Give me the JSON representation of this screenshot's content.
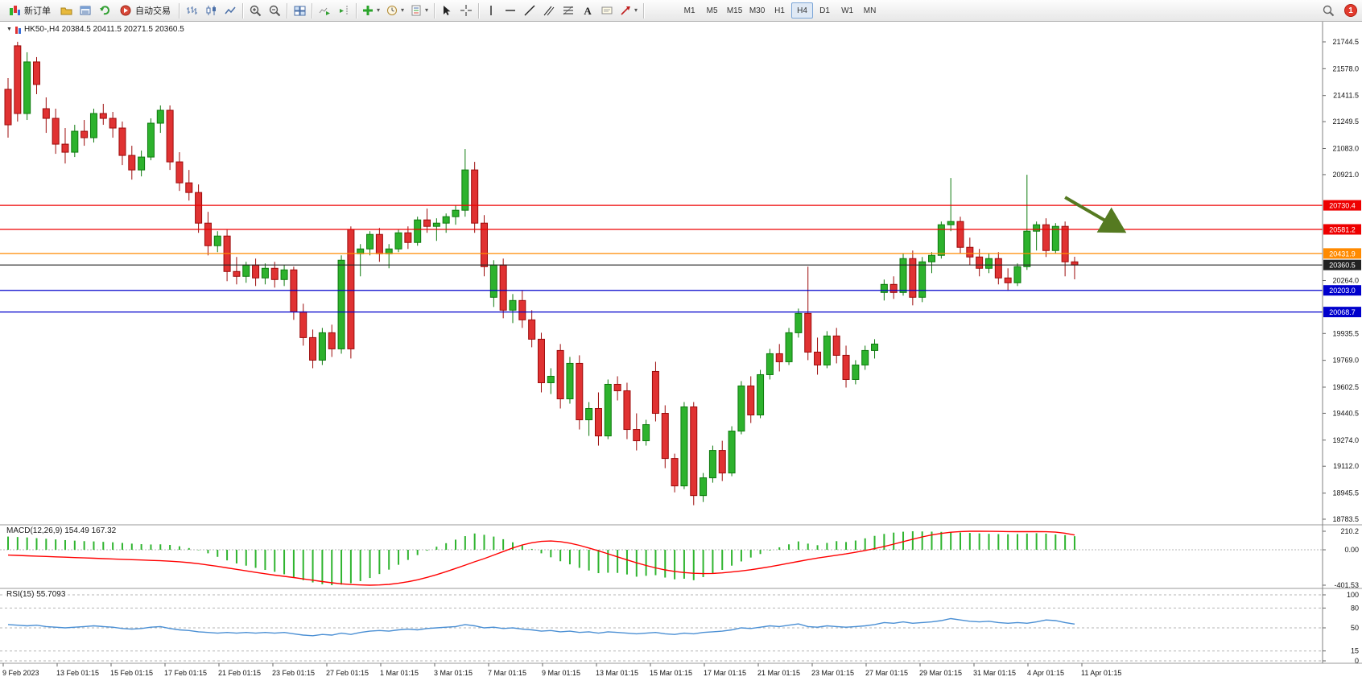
{
  "toolbar": {
    "new_order": "新订单",
    "autotrading": "自动交易",
    "chevron": "▾",
    "text_tool": "A",
    "notification_count": "1",
    "timeframes": [
      "M1",
      "M5",
      "M15",
      "M30",
      "H1",
      "H4",
      "D1",
      "W1",
      "MN"
    ],
    "active_timeframe": "H4"
  },
  "chart": {
    "collapse_glyph": "▼",
    "title": "HK50-,H4 20384.5 20411.5 20271.5 20360.5",
    "symbol": "HK50-",
    "period": "H4",
    "open": 20384.5,
    "high": 20411.5,
    "low": 20271.5,
    "close": 20360.5
  },
  "indicators": {
    "macd_label": "MACD(12,26,9) 154.49 167.32",
    "rsi_label": "RSI(15) 55.7093"
  },
  "colors": {
    "up": "#2db22d",
    "up_border": "#0e7a0e",
    "down": "#e03232",
    "down_border": "#9c0b0b",
    "macd_hist": "#2fb42f",
    "macd_signal": "#ff0000",
    "rsi_line": "#4a8fd4",
    "line_red": "#ee0000",
    "line_orange": "#ff8a00",
    "line_blue": "#0000cc",
    "bid_line": "#333333",
    "arrow": "#557a21"
  },
  "chart_data": [
    {
      "type": "candlestick",
      "title": "HK50-,H4",
      "ylim": [
        18783.5,
        21744.5
      ],
      "y_ticks": [
        "21744.5",
        "21578.0",
        "21411.5",
        "21249.5",
        "21083.0",
        "20921.0",
        "20264.0",
        "19935.5",
        "19769.0",
        "19602.5",
        "19440.5",
        "19274.0",
        "19112.0",
        "18945.5",
        "18783.5"
      ],
      "x_labels": [
        "9 Feb 2023",
        "13 Feb 01:15",
        "15 Feb 01:15",
        "17 Feb 01:15",
        "21 Feb 01:15",
        "23 Feb 01:15",
        "27 Feb 01:15",
        "1 Mar 01:15",
        "3 Mar 01:15",
        "7 Mar 01:15",
        "9 Mar 01:15",
        "13 Mar 01:15",
        "15 Mar 01:15",
        "17 Mar 01:15",
        "21 Mar 01:15",
        "23 Mar 01:15",
        "27 Mar 01:15",
        "29 Mar 01:15",
        "31 Mar 01:15",
        "4 Apr 01:15",
        "11 Apr 01:15"
      ],
      "price_lines": [
        {
          "price": 20730.4,
          "color": "#ee0000"
        },
        {
          "price": 20581.2,
          "color": "#ee0000"
        },
        {
          "price": 20431.9,
          "color": "#ff8a00"
        },
        {
          "price": 20360.5,
          "color": "#222222"
        },
        {
          "price": 20203.0,
          "color": "#0000cc"
        },
        {
          "price": 20068.7,
          "color": "#0000cc"
        }
      ],
      "arrow": {
        "from_index": 111,
        "from_price": 20780,
        "to_index": 117,
        "to_price": 20575,
        "color": "#557a21"
      },
      "candles": [
        [
          21450,
          21520,
          21150,
          21230
        ],
        [
          21720,
          21745,
          21250,
          21300
        ],
        [
          21300,
          21680,
          21260,
          21620
        ],
        [
          21620,
          21650,
          21420,
          21480
        ],
        [
          21330,
          21400,
          21180,
          21270
        ],
        [
          21270,
          21330,
          21050,
          21110
        ],
        [
          21110,
          21210,
          20990,
          21060
        ],
        [
          21060,
          21230,
          21030,
          21190
        ],
        [
          21190,
          21260,
          21100,
          21150
        ],
        [
          21150,
          21330,
          21120,
          21300
        ],
        [
          21300,
          21360,
          21230,
          21270
        ],
        [
          21270,
          21310,
          21150,
          21210
        ],
        [
          21210,
          21250,
          20980,
          21040
        ],
        [
          21040,
          21100,
          20890,
          20950
        ],
        [
          20950,
          21070,
          20910,
          21030
        ],
        [
          21030,
          21270,
          21010,
          21240
        ],
        [
          21240,
          21350,
          21180,
          21320
        ],
        [
          21320,
          21350,
          20950,
          21000
        ],
        [
          21000,
          21060,
          20820,
          20870
        ],
        [
          20870,
          20950,
          20760,
          20810
        ],
        [
          20810,
          20860,
          20560,
          20620
        ],
        [
          20620,
          20690,
          20420,
          20480
        ],
        [
          20480,
          20570,
          20440,
          20540
        ],
        [
          20540,
          20580,
          20260,
          20320
        ],
        [
          20320,
          20410,
          20240,
          20290
        ],
        [
          20290,
          20380,
          20250,
          20360
        ],
        [
          20360,
          20400,
          20230,
          20280
        ],
        [
          20280,
          20370,
          20240,
          20340
        ],
        [
          20340,
          20380,
          20220,
          20270
        ],
        [
          20270,
          20360,
          20230,
          20330
        ],
        [
          20330,
          20350,
          20020,
          20070
        ],
        [
          20070,
          20120,
          19860,
          19910
        ],
        [
          19910,
          19960,
          19720,
          19770
        ],
        [
          19770,
          19970,
          19740,
          19940
        ],
        [
          19940,
          19990,
          19790,
          19840
        ],
        [
          19840,
          20420,
          19810,
          20390
        ],
        [
          20580,
          20600,
          19780,
          19840
        ],
        [
          20430,
          20490,
          20290,
          20460
        ],
        [
          20460,
          20570,
          20420,
          20550
        ],
        [
          20550,
          20590,
          20380,
          20430
        ],
        [
          20430,
          20490,
          20340,
          20460
        ],
        [
          20460,
          20580,
          20440,
          20560
        ],
        [
          20560,
          20600,
          20460,
          20500
        ],
        [
          20500,
          20660,
          20480,
          20640
        ],
        [
          20640,
          20710,
          20560,
          20600
        ],
        [
          20600,
          20650,
          20510,
          20620
        ],
        [
          20620,
          20680,
          20560,
          20660
        ],
        [
          20660,
          20730,
          20610,
          20700
        ],
        [
          20700,
          21080,
          20660,
          20950
        ],
        [
          20950,
          21000,
          20560,
          20620
        ],
        [
          20620,
          20670,
          20290,
          20350
        ],
        [
          20160,
          20390,
          20100,
          20360
        ],
        [
          20360,
          20400,
          20030,
          20080
        ],
        [
          20080,
          20180,
          20000,
          20140
        ],
        [
          20140,
          20200,
          19970,
          20020
        ],
        [
          20020,
          20080,
          19850,
          19900
        ],
        [
          19900,
          19940,
          19570,
          19630
        ],
        [
          19630,
          19720,
          19560,
          19670
        ],
        [
          19830,
          19870,
          19470,
          19530
        ],
        [
          19530,
          19790,
          19500,
          19750
        ],
        [
          19750,
          19800,
          19340,
          19400
        ],
        [
          19400,
          19510,
          19300,
          19470
        ],
        [
          19470,
          19570,
          19240,
          19300
        ],
        [
          19300,
          19650,
          19280,
          19620
        ],
        [
          19620,
          19670,
          19520,
          19580
        ],
        [
          19580,
          19630,
          19280,
          19340
        ],
        [
          19340,
          19440,
          19210,
          19270
        ],
        [
          19270,
          19400,
          19240,
          19370
        ],
        [
          19700,
          19760,
          19390,
          19440
        ],
        [
          19440,
          19490,
          19100,
          19160
        ],
        [
          19160,
          19190,
          18950,
          18990
        ],
        [
          18990,
          19510,
          18970,
          19480
        ],
        [
          19480,
          19510,
          18870,
          18930
        ],
        [
          18930,
          19070,
          18890,
          19040
        ],
        [
          19040,
          19240,
          19010,
          19210
        ],
        [
          19210,
          19270,
          19020,
          19070
        ],
        [
          19070,
          19360,
          19050,
          19330
        ],
        [
          19330,
          19640,
          19310,
          19610
        ],
        [
          19610,
          19670,
          19380,
          19430
        ],
        [
          19430,
          19710,
          19410,
          19680
        ],
        [
          19680,
          19840,
          19650,
          19810
        ],
        [
          19810,
          19870,
          19700,
          19760
        ],
        [
          19760,
          19970,
          19740,
          19940
        ],
        [
          19940,
          20090,
          19910,
          20060
        ],
        [
          20060,
          20350,
          19770,
          19820
        ],
        [
          19820,
          19910,
          19680,
          19740
        ],
        [
          19740,
          19950,
          19720,
          19920
        ],
        [
          19920,
          19970,
          19750,
          19800
        ],
        [
          19800,
          19860,
          19600,
          19650
        ],
        [
          19650,
          19770,
          19620,
          19740
        ],
        [
          19740,
          19860,
          19710,
          19830
        ],
        [
          19830,
          19900,
          19780,
          19870
        ],
        [
          20190,
          20270,
          20140,
          20240
        ],
        [
          20240,
          20290,
          20150,
          20190
        ],
        [
          20190,
          20430,
          20170,
          20400
        ],
        [
          20400,
          20450,
          20110,
          20160
        ],
        [
          20160,
          20410,
          20130,
          20380
        ],
        [
          20380,
          20440,
          20310,
          20420
        ],
        [
          20420,
          20630,
          20400,
          20610
        ],
        [
          20610,
          20900,
          20570,
          20630
        ],
        [
          20630,
          20660,
          20430,
          20470
        ],
        [
          20470,
          20530,
          20360,
          20410
        ],
        [
          20410,
          20460,
          20290,
          20340
        ],
        [
          20340,
          20430,
          20310,
          20400
        ],
        [
          20400,
          20440,
          20240,
          20280
        ],
        [
          20280,
          20340,
          20200,
          20250
        ],
        [
          20250,
          20370,
          20230,
          20350
        ],
        [
          20350,
          20920,
          20330,
          20570
        ],
        [
          20570,
          20630,
          20450,
          20610
        ],
        [
          20610,
          20650,
          20410,
          20450
        ],
        [
          20450,
          20620,
          20430,
          20600
        ],
        [
          20600,
          20630,
          20290,
          20380
        ],
        [
          20380,
          20411.5,
          20271.5,
          20360.5
        ]
      ]
    },
    {
      "type": "bar",
      "name": "MACD(12,26,9)",
      "values_label": "154.49 167.32",
      "ylim": [
        -401.53,
        210.2
      ],
      "y_ticks": [
        "210.2",
        "0.00",
        "-401.53"
      ],
      "histogram": [
        150,
        145,
        140,
        132,
        125,
        118,
        110,
        104,
        98,
        95,
        90,
        85,
        78,
        70,
        64,
        60,
        62,
        55,
        40,
        20,
        -5,
        -40,
        -80,
        -120,
        -155,
        -180,
        -205,
        -228,
        -250,
        -278,
        -310,
        -345,
        -370,
        -390,
        -401.53,
        -395,
        -380,
        -355,
        -320,
        -275,
        -225,
        -170,
        -115,
        -60,
        -10,
        35,
        75,
        115,
        155,
        185,
        170,
        150,
        120,
        85,
        50,
        10,
        -40,
        -85,
        -130,
        -165,
        -205,
        -235,
        -265,
        -260,
        -262,
        -280,
        -305,
        -295,
        -288,
        -315,
        -335,
        -328,
        -345,
        -310,
        -270,
        -228,
        -180,
        -132,
        -88,
        -48,
        -8,
        28,
        62,
        95,
        70,
        52,
        78,
        98,
        88,
        105,
        130,
        158,
        180,
        195,
        205,
        210,
        208,
        206,
        203,
        200,
        196,
        191,
        186,
        181,
        178,
        176,
        179,
        184,
        188,
        183,
        174,
        167,
        154.49
      ],
      "signal": [
        -60,
        -64,
        -68,
        -72,
        -76,
        -80,
        -84,
        -88,
        -92,
        -96,
        -100,
        -104,
        -108,
        -112,
        -116,
        -120,
        -124,
        -129,
        -136,
        -146,
        -158,
        -172,
        -188,
        -205,
        -222,
        -239,
        -256,
        -272,
        -287,
        -301,
        -315,
        -330,
        -345,
        -360,
        -374,
        -386,
        -394,
        -399,
        -401.53,
        -399,
        -392,
        -380,
        -362,
        -340,
        -313,
        -282,
        -248,
        -212,
        -174,
        -136,
        -100,
        -60,
        -20,
        20,
        55,
        80,
        95,
        100,
        92,
        75,
        50,
        20,
        -12,
        -45,
        -80,
        -115,
        -148,
        -178,
        -205,
        -228,
        -245,
        -258,
        -266,
        -270,
        -268,
        -262,
        -252,
        -240,
        -226,
        -210,
        -192,
        -172,
        -152,
        -132,
        -112,
        -94,
        -78,
        -62,
        -46,
        -28,
        -8,
        14,
        38,
        64,
        92,
        120,
        146,
        168,
        186,
        199,
        207,
        210,
        210,
        209,
        208,
        207,
        206,
        206,
        206,
        205,
        200,
        188,
        167.32
      ]
    },
    {
      "type": "line",
      "name": "RSI(15)",
      "current": 55.7093,
      "ylim": [
        0,
        100
      ],
      "y_ticks": [
        "100",
        "80",
        "50",
        "15",
        "0"
      ],
      "levels": [
        100,
        80,
        50,
        15,
        0
      ],
      "values": [
        55,
        54,
        53,
        54,
        52,
        51,
        50,
        51,
        52,
        53,
        52,
        51,
        49,
        48,
        49,
        51,
        52,
        49,
        47,
        46,
        44,
        43,
        42,
        43,
        42,
        43,
        42,
        43,
        42,
        43,
        41,
        39,
        38,
        40,
        39,
        42,
        40,
        43,
        45,
        46,
        45,
        47,
        48,
        47,
        49,
        50,
        51,
        52,
        55,
        53,
        50,
        51,
        49,
        50,
        48,
        47,
        45,
        46,
        44,
        45,
        43,
        44,
        42,
        44,
        43,
        42,
        41,
        42,
        43,
        41,
        40,
        42,
        41,
        43,
        44,
        45,
        47,
        50,
        49,
        51,
        53,
        52,
        54,
        56,
        52,
        51,
        53,
        52,
        51,
        52,
        53,
        55,
        58,
        57,
        59,
        57,
        58,
        59,
        61,
        64,
        62,
        60,
        59,
        60,
        58,
        57,
        58,
        57,
        59,
        62,
        61,
        58,
        55.71
      ]
    }
  ]
}
